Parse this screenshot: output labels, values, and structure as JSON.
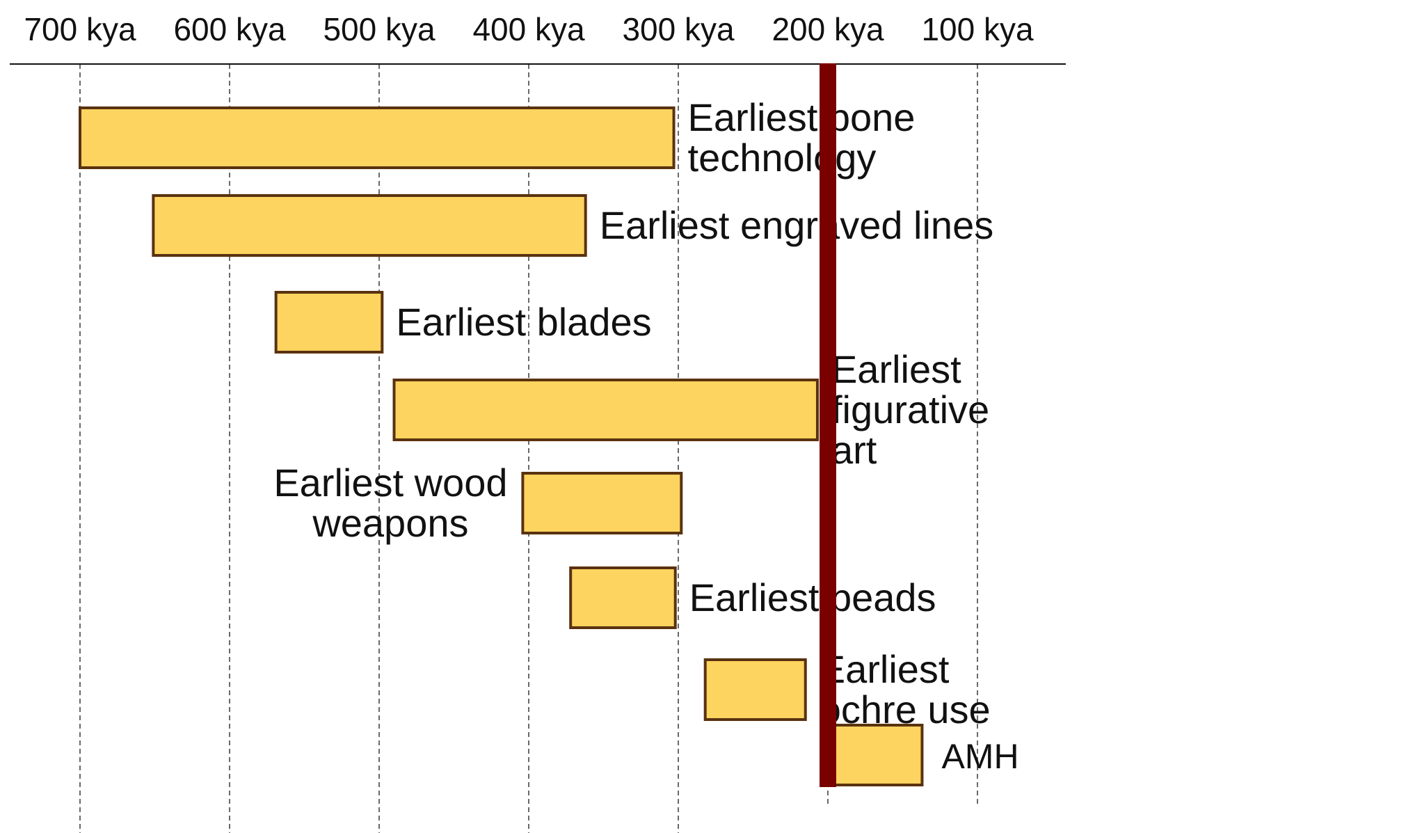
{
  "chart_data": {
    "type": "bar",
    "orientation": "horizontal-range",
    "title": "",
    "xlabel": "",
    "ylabel": "",
    "x_axis_position": "top",
    "x_direction": "reversed",
    "xlim": [
      745,
      0
    ],
    "x_ticks": [
      700,
      600,
      500,
      400,
      300,
      200,
      100
    ],
    "tick_labels": [
      "700 kya",
      "600 kya",
      "500 kya",
      "400 kya",
      "300 kya",
      "200 kya",
      "100 kya"
    ],
    "grid": "vertical dashed lines at each tick",
    "bars": [
      {
        "label": "Earliest bone technology",
        "lines": [
          "Earliest bone",
          "technology"
        ],
        "start": 700,
        "end": 303,
        "label_side": "right"
      },
      {
        "label": "Earliest engraved lines",
        "lines": [
          "Earliest engraved lines"
        ],
        "start": 651,
        "end": 362,
        "label_side": "right"
      },
      {
        "label": "Earliest blades",
        "lines": [
          "Earliest blades"
        ],
        "start": 569,
        "end": 498,
        "label_side": "right"
      },
      {
        "label": "Earliest figurative art",
        "lines": [
          "Earliest",
          "figurative",
          "art"
        ],
        "start": 490,
        "end": 207,
        "label_side": "right"
      },
      {
        "label": "Earliest wood weapons",
        "lines": [
          "Earliest wood",
          "weapons"
        ],
        "start": 404,
        "end": 298,
        "label_side": "left"
      },
      {
        "label": "Earliest beads",
        "lines": [
          "Earliest beads"
        ],
        "start": 372,
        "end": 302,
        "label_side": "right"
      },
      {
        "label": "Earliest ochre use",
        "lines": [
          "Earliest",
          "ochre use"
        ],
        "start": 282,
        "end": 215,
        "label_side": "right"
      },
      {
        "label": "AMH",
        "lines": [
          "AMH"
        ],
        "start": 200,
        "end": 137,
        "label_side": "right"
      }
    ],
    "reference_line": {
      "x": 200,
      "color": "#7a0000"
    },
    "colors": {
      "bar_fill": "#fcd45f",
      "bar_stroke": "#5a3210",
      "grid": "#444444",
      "axis": "#111111"
    }
  }
}
